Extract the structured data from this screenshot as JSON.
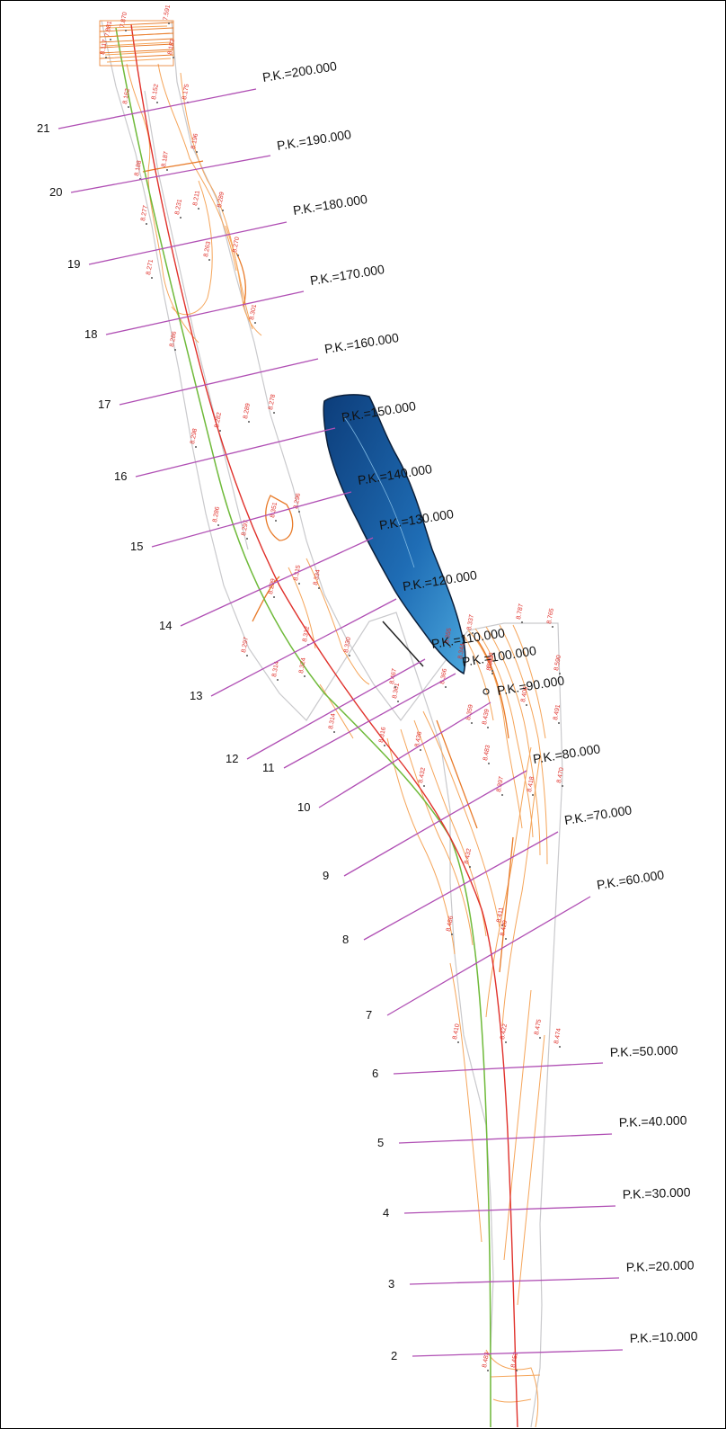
{
  "sections": [
    {
      "num": "21",
      "pk": "P.K.=200.000"
    },
    {
      "num": "20",
      "pk": "P.K.=190.000"
    },
    {
      "num": "19",
      "pk": "P.K.=180.000"
    },
    {
      "num": "18",
      "pk": "P.K.=170.000"
    },
    {
      "num": "17",
      "pk": "P.K.=160.000"
    },
    {
      "num": "16",
      "pk": "P.K.=150.000"
    },
    {
      "num": "15",
      "pk": "P.K.=140.000"
    },
    {
      "num": "14",
      "pk": "P.K.=130.000"
    },
    {
      "num": "13",
      "pk": "P.K.=120.000"
    },
    {
      "num": "12",
      "pk": "P.K.=110.000"
    },
    {
      "num": "11",
      "pk": "P.K.=100.000"
    },
    {
      "num": "10",
      "pk": "P.K.=90.000"
    },
    {
      "num": "9",
      "pk": "P.K.=80.000"
    },
    {
      "num": "8",
      "pk": "P.K.=70.000"
    },
    {
      "num": "7",
      "pk": "P.K.=60.000"
    },
    {
      "num": "6",
      "pk": "P.K.=50.000"
    },
    {
      "num": "5",
      "pk": "P.K.=40.000"
    },
    {
      "num": "4",
      "pk": "P.K.=30.000"
    },
    {
      "num": "3",
      "pk": "P.K.=20.000"
    },
    {
      "num": "2",
      "pk": "P.K.=10.000"
    }
  ],
  "elevations": [
    "7.881",
    "7.870",
    "7.591",
    "8.117",
    "8.183",
    "8.162",
    "8.152",
    "8.175",
    "8.187",
    "8.196",
    "8.188",
    "8.231",
    "8.211",
    "8.289",
    "8.277",
    "8.263",
    "8.270",
    "8.271",
    "8.301",
    "8.286",
    "8.289",
    "8.278",
    "8.298",
    "8.282",
    "8.296",
    "8.297",
    "8.351",
    "8.286",
    "8.299",
    "8.315",
    "8.334",
    "8.297",
    "8.312",
    "8.330",
    "8.314",
    "8.324",
    "8.361",
    "8.314",
    "8.316",
    "8.355",
    "8.337",
    "8.787",
    "8.765",
    "8.344",
    "8.356",
    "8.590",
    "8.467",
    "8.366",
    "8.436",
    "8.432",
    "8.483",
    "8.439",
    "8.359",
    "8.361",
    "8.406",
    "8.491",
    "8.397",
    "8.418",
    "8.470",
    "8.432",
    "8.411",
    "8.486",
    "8.420",
    "8.410",
    "8.422",
    "8.475",
    "8.474",
    "8.483",
    "8.452"
  ],
  "colors": {
    "section_line": "#b04fb4",
    "axis_red": "#e0312b",
    "axis_green": "#6fba3a",
    "contour": "#f5a55a",
    "water_dark": "#0d3d7a",
    "water_light": "#4aa6dc"
  }
}
